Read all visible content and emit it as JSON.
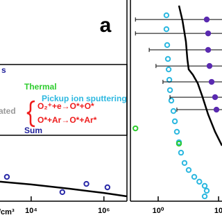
{
  "chart_data": [
    {
      "type": "line",
      "panel_label": "a",
      "xlabel": "/cm³",
      "xscale": "log",
      "xlim": [
        1390,
        4300000
      ],
      "ylim": [
        0,
        100
      ],
      "xticks": [
        {
          "value": 10000,
          "label": "10⁴"
        },
        {
          "value": 1000000,
          "label": "10⁶"
        }
      ],
      "annotations": [
        "s",
        "ated"
      ],
      "legend": [
        {
          "label": "Thermal",
          "color": "#2ecc2e"
        },
        {
          "label": "Pickup ion sputtering",
          "color": "#2cb8e0"
        },
        {
          "label": "O₂⁺+e→O*+O*",
          "color": "#ee1c1c"
        },
        {
          "label": "O*+Ar→O*+Ar*",
          "color": "#ee1c1c"
        },
        {
          "label": "Sum",
          "color": "#1f1f9a"
        }
      ],
      "series": [
        {
          "style": "line",
          "color": "#000000",
          "x": [
            1390,
            10000,
            112000,
            1000000,
            4300000
          ],
          "values": [
            9.7,
            8.3,
            6.2,
            4.1,
            2.4
          ]
        },
        {
          "style": "markers",
          "color": "#2a2aa8",
          "x": [
            2150,
            72000,
            330000,
            1250000
          ],
          "values": [
            12.1,
            4.5,
            8.6,
            6.9
          ]
        }
      ]
    },
    {
      "type": "line",
      "xscale": "log",
      "xlim": [
        0.347,
        11.4
      ],
      "ylim": [
        0,
        100
      ],
      "xticks": [
        {
          "value": 1,
          "label": "10⁰"
        },
        10
      ],
      "series": [
        {
          "style": "line",
          "color": "#000000",
          "x": [
            2.21,
            2.53,
            2.88,
            3.04,
            3.2,
            3.76,
            4.52,
            5.44,
            6.72,
            8.76,
            11.4
          ],
          "values": [
            97.2,
            89.7,
            79.3,
            70.7,
            65.5,
            62.8,
            58.6,
            51.7,
            43.1,
            34.5,
            27.6
          ]
        },
        {
          "style": "markers",
          "color": "#2cb8e0",
          "x": [
            1.37,
            1.37,
            1.41,
            1.45,
            1.49,
            1.53,
            1.57,
            1.65,
            1.79,
            1.89,
            2.04,
            2.21,
            2.39,
            2.73,
            3.2,
            3.96,
            4.8,
            5.89,
            6.37,
            5.89
          ],
          "values": [
            92.4,
            85.5,
            77.6,
            70.7,
            65.5,
            60.3,
            55.2,
            50,
            44.8,
            39.7,
            34.5,
            29.3,
            24.1,
            19,
            15.5,
            12.1,
            9.7,
            7.6,
            5.2,
            2.4
          ]
        },
        {
          "style": "errorx",
          "color": "#5a2ab0",
          "x": [
            6.37,
            6.72,
            6.72,
            7.08,
            7.67,
            8.76,
            9.23
          ],
          "values": [
            90.3,
            83.4,
            75.2,
            67.2,
            59.3,
            51.7,
            45.5
          ],
          "errors": [
            5.95,
            6.3,
            6.01,
            6.16,
            6.47,
            7.19,
            7.19
          ]
        },
        {
          "style": "markers",
          "color": "#2ecc2e",
          "x": [
            0.42,
            2.21
          ],
          "values": [
            36.2,
            28.6
          ]
        }
      ]
    }
  ]
}
